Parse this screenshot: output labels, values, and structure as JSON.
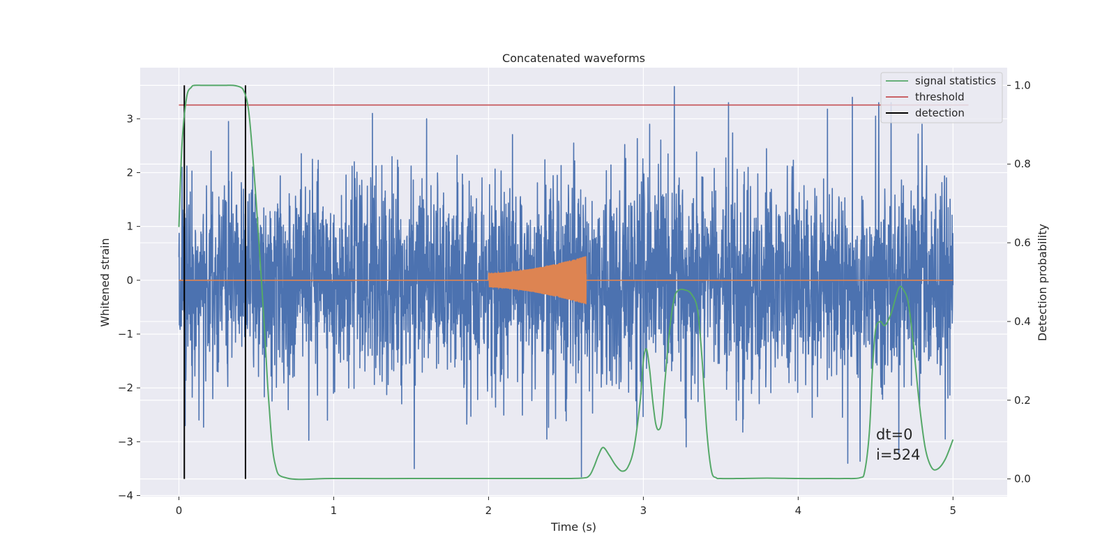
{
  "chart_data": {
    "type": "line",
    "title": "Concatenated waveforms",
    "xlabel": "Time (s)",
    "ylabel_left": "Whitened strain",
    "ylabel_right": "Detection probability",
    "xlim": [
      -0.25,
      5.35
    ],
    "ylim_left": [
      -4.02,
      3.95
    ],
    "ylim_right": [
      -0.045,
      1.045
    ],
    "grid": true,
    "legend_position": "top-right",
    "x_ticks": [
      "0",
      "1",
      "2",
      "3",
      "4",
      "5"
    ],
    "y_left_ticks": [
      "−4",
      "−3",
      "−2",
      "−1",
      "0",
      "1",
      "2",
      "3"
    ],
    "y_right_ticks": [
      "0.0",
      "0.2",
      "0.4",
      "0.6",
      "0.8",
      "1.0"
    ],
    "series": [
      {
        "name": "",
        "axis": "left",
        "kind": "noise",
        "x_range": [
          0.0,
          5.0
        ],
        "mean": 0.0,
        "std": 1.0,
        "notable_peaks": [
          [
            0.02,
            2.1
          ],
          [
            0.04,
            -2.7
          ],
          [
            0.32,
            2.95
          ],
          [
            0.96,
            -2.6
          ],
          [
            1.25,
            3.1
          ],
          [
            1.6,
            3.0
          ],
          [
            1.52,
            -3.5
          ],
          [
            2.55,
            2.55
          ],
          [
            3.04,
            2.9
          ],
          [
            3.2,
            3.6
          ],
          [
            3.55,
            3.3
          ],
          [
            3.6,
            -2.6
          ],
          [
            4.35,
            3.4
          ],
          [
            4.32,
            -3.4
          ],
          [
            4.5,
            3.05
          ],
          [
            4.52,
            3.3
          ],
          [
            4.6,
            3.3
          ],
          [
            4.65,
            -3.2
          ],
          [
            4.8,
            2.9
          ],
          [
            4.95,
            -2.95
          ],
          [
            2.6,
            -3.65
          ]
        ]
      },
      {
        "name": "",
        "axis": "left",
        "kind": "chirp",
        "x_range": [
          0.0,
          5.0
        ],
        "chirp_start": 2.0,
        "chirp_end": 2.63,
        "amplitude_start": 0.13,
        "amplitude_end": 0.45
      },
      {
        "name": "signal statistics",
        "axis": "right",
        "color": "#55a868",
        "x": [
          0.0,
          0.02,
          0.05,
          0.08,
          0.1,
          0.15,
          0.2,
          0.25,
          0.3,
          0.35,
          0.4,
          0.42,
          0.44,
          0.46,
          0.5,
          0.55,
          0.58,
          0.62,
          0.7,
          1.0,
          1.5,
          2.0,
          2.4,
          2.6,
          2.65,
          2.68,
          2.71,
          2.74,
          2.78,
          2.82,
          2.86,
          2.9,
          2.94,
          2.98,
          3.0,
          3.02,
          3.04,
          3.06,
          3.08,
          3.1,
          3.12,
          3.14,
          3.17,
          3.2,
          3.23,
          3.27,
          3.31,
          3.35,
          3.38,
          3.41,
          3.44,
          3.47,
          3.5,
          3.6,
          3.8,
          4.0,
          4.2,
          4.3,
          4.4,
          4.43,
          4.46,
          4.48,
          4.5,
          4.53,
          4.56,
          4.6,
          4.65,
          4.68,
          4.71,
          4.74,
          4.78,
          4.82,
          4.86,
          4.9,
          4.95,
          5.0
        ],
        "y": [
          0.64,
          0.85,
          0.97,
          0.995,
          1.0,
          1.0,
          1.0,
          1.0,
          1.0,
          1.0,
          0.995,
          0.985,
          0.96,
          0.9,
          0.7,
          0.4,
          0.2,
          0.04,
          0.002,
          0.001,
          0.001,
          0.001,
          0.001,
          0.002,
          0.008,
          0.03,
          0.06,
          0.08,
          0.06,
          0.035,
          0.02,
          0.03,
          0.08,
          0.2,
          0.3,
          0.33,
          0.28,
          0.2,
          0.14,
          0.125,
          0.15,
          0.25,
          0.38,
          0.46,
          0.48,
          0.48,
          0.47,
          0.43,
          0.3,
          0.12,
          0.02,
          0.003,
          0.001,
          0.001,
          0.002,
          0.001,
          0.001,
          0.001,
          0.003,
          0.02,
          0.12,
          0.28,
          0.38,
          0.4,
          0.39,
          0.42,
          0.485,
          0.48,
          0.45,
          0.36,
          0.2,
          0.08,
          0.03,
          0.025,
          0.05,
          0.1
        ]
      },
      {
        "name": "threshold",
        "axis": "right",
        "color": "#c44e52",
        "x": [
          0.0,
          5.1
        ],
        "y": [
          0.95,
          0.95
        ]
      },
      {
        "name": "detection",
        "axis": "right",
        "color": "#000000",
        "vlines_x": [
          0.035,
          0.43
        ],
        "y_range": [
          0.0,
          1.0
        ]
      }
    ],
    "annotations": [
      "dt=0",
      "i=524"
    ],
    "annotation_position": {
      "x": 4.5,
      "y": -2.9
    }
  },
  "colors": {
    "background": "#eaeaf2",
    "grid": "#ffffff",
    "noise": "#4c72b0",
    "chirp": "#dd8452"
  }
}
